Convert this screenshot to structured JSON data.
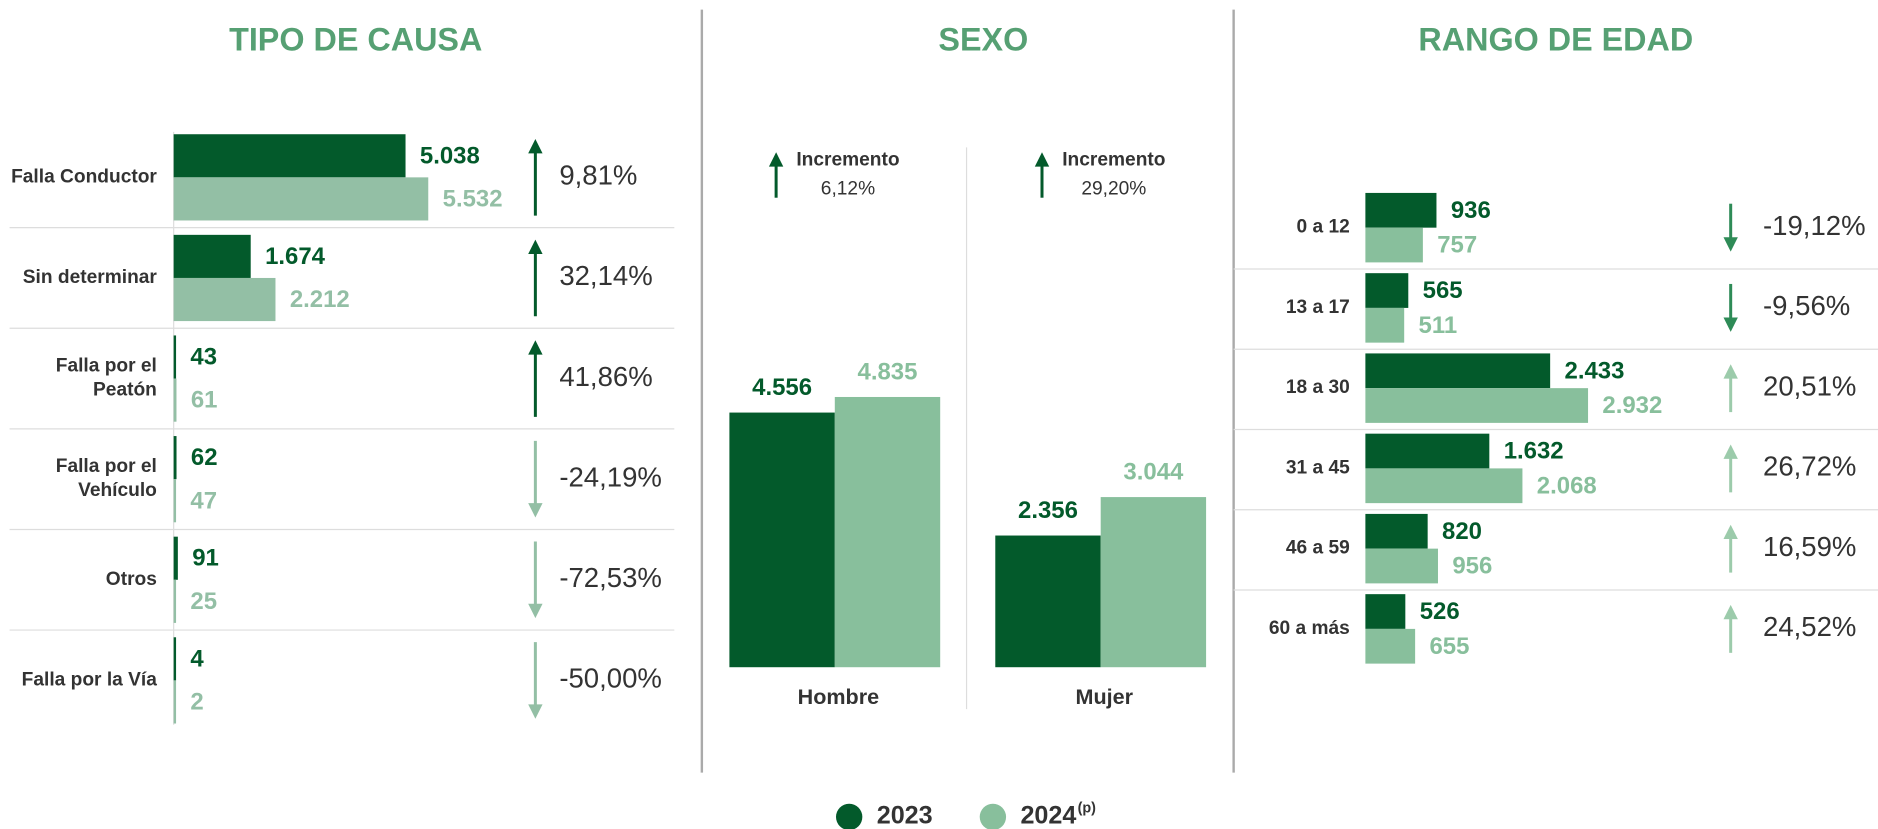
{
  "chart_data": [
    {
      "type": "bar",
      "orientation": "horizontal",
      "title": "TIPO DE CAUSA",
      "categories": [
        "Falla Conductor",
        "Sin determinar",
        "Falla por el\nPeatón",
        "Falla por el\nVehículo",
        "Otros",
        "Falla por la Vía"
      ],
      "series": [
        {
          "name": "2023",
          "color": "#035a2b",
          "values": [
            5038,
            1674,
            43,
            62,
            91,
            4
          ],
          "value_labels": [
            "5.038",
            "1.674",
            "43",
            "62",
            "91",
            "4"
          ]
        },
        {
          "name": "2024",
          "color": "#93bfa5",
          "values": [
            5532,
            2212,
            61,
            47,
            25,
            2
          ],
          "value_labels": [
            "5.532",
            "2.212",
            "61",
            "47",
            "25",
            "2"
          ]
        }
      ],
      "changes": [
        9.81,
        32.14,
        41.86,
        -24.19,
        -72.53,
        -50.0
      ],
      "change_labels": [
        "9,81%",
        "32,14%",
        "41,86%",
        "-24,19%",
        "-72,53%",
        "-50,00%"
      ],
      "arrow_colors": {
        "up": "#035a2b",
        "down": "#93bfa5"
      },
      "xlim": [
        0,
        10800
      ]
    },
    {
      "type": "bar",
      "orientation": "vertical",
      "title": "SEXO",
      "categories": [
        "Hombre",
        "Mujer"
      ],
      "series": [
        {
          "name": "2023",
          "color": "#035a2b",
          "values": [
            4556,
            2356
          ],
          "value_labels": [
            "4.556",
            "2.356"
          ]
        },
        {
          "name": "2024",
          "color": "#88bf9c",
          "values": [
            4835,
            3044
          ],
          "value_labels": [
            "4.835",
            "3.044"
          ]
        }
      ],
      "annotations": [
        {
          "title": "Incremento",
          "value": 6.12,
          "label": "6,12%"
        },
        {
          "title": "Incremento",
          "value": 29.2,
          "label": "29,20%"
        }
      ],
      "arrow_colors": {
        "up": "#035a2b",
        "down": "#88bf9c"
      },
      "ylim": [
        0,
        6000
      ]
    },
    {
      "type": "bar",
      "orientation": "horizontal",
      "title": "RANGO DE EDAD",
      "categories": [
        "0 a 12",
        "13 a 17",
        "18 a 30",
        "31 a 45",
        "46 a 59",
        "60 a más"
      ],
      "series": [
        {
          "name": "2023",
          "color": "#035a2b",
          "values": [
            936,
            565,
            2433,
            1632,
            820,
            526
          ],
          "value_labels": [
            "936",
            "565",
            "2.433",
            "1.632",
            "820",
            "526"
          ]
        },
        {
          "name": "2024",
          "color": "#88bf9c",
          "values": [
            757,
            511,
            2932,
            2068,
            956,
            655
          ],
          "value_labels": [
            "757",
            "511",
            "2.932",
            "2.068",
            "956",
            "655"
          ]
        }
      ],
      "changes": [
        -19.12,
        -9.56,
        20.51,
        26.72,
        16.59,
        24.52
      ],
      "change_labels": [
        "-19,12%",
        "-9,56%",
        "20,51%",
        "26,72%",
        "16,59%",
        "24,52%"
      ],
      "arrow_colors": {
        "up": "#9ccbab",
        "down": "#2e8b57"
      },
      "xlim": [
        0,
        6750
      ]
    }
  ],
  "legend_note": "(p)"
}
